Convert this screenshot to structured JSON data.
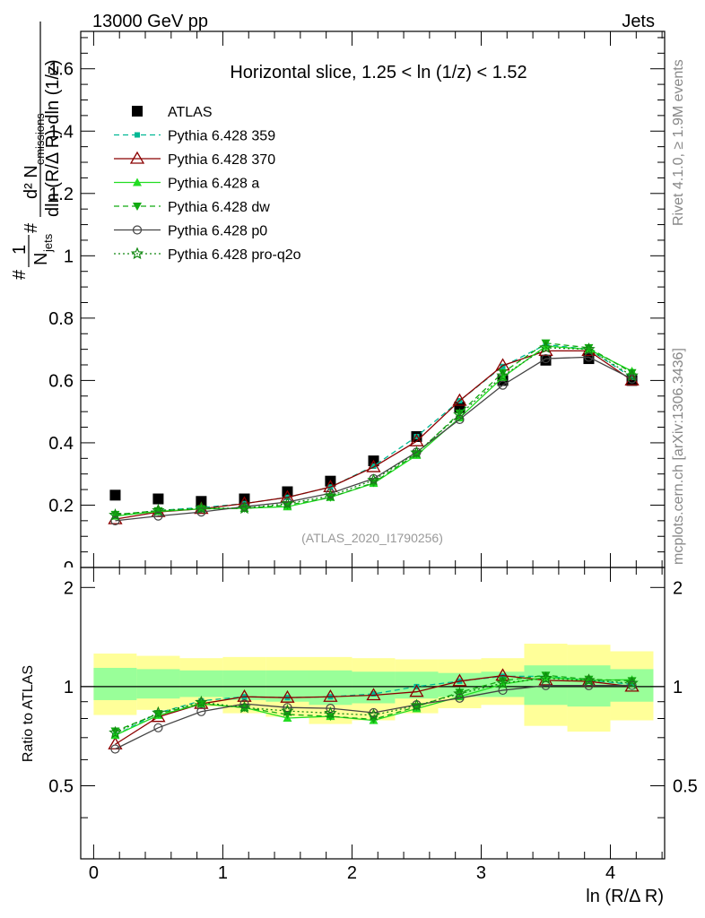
{
  "header": {
    "left": "13000 GeV pp",
    "right": "Jets"
  },
  "side_texts": {
    "rivet": "Rivet 4.1.0, ≥ 1.9M events",
    "mcplots": "mcplots.cern.ch [arXiv:1306.3436]"
  },
  "colors": {
    "atlas": "#000000",
    "p359": "#00b894",
    "p370": "#8b0000",
    "a": "#22dd22",
    "dw": "#11aa11",
    "p0": "#444444",
    "proq2o": "#118811",
    "band_yellow": "#ffff99",
    "band_green": "#99ff99"
  },
  "chart_data": {
    "type": "line",
    "title": "Horizontal slice, 1.25 < ln (1/z) < 1.52",
    "watermark": "(ATLAS_2020_I1790256)",
    "xlabel": "ln (R/Δ R)",
    "ylabel_main": "1/N_jets d²N_emissions / dln(R/ΔR) dln(1/z)",
    "ylabel_main_parts": {
      "hash": "#",
      "one": "1",
      "njets": "N",
      "jets_sub": "jets",
      "d2": "d² N",
      "emissions_sub": "emissions",
      "denominator": "dln (R/Δ R) dln (1/z)"
    },
    "ylabel_ratio": "Ratio to ATLAS",
    "xlim": [
      -0.1,
      4.42
    ],
    "ylim_main": [
      0,
      1.72
    ],
    "ylim_ratio": [
      0.3,
      2.3
    ],
    "x_ticks": [
      "0",
      "1",
      "2",
      "3",
      "4"
    ],
    "y_ticks_main": [
      "0.2",
      "0.4",
      "0.6",
      "0.8",
      "1",
      "1.2",
      "1.4",
      "1.6"
    ],
    "y_ticks_ratio": [
      "0.5",
      "1",
      "2"
    ],
    "x": [
      0.167,
      0.5,
      0.833,
      1.167,
      1.5,
      1.833,
      2.167,
      2.5,
      2.833,
      3.167,
      3.5,
      3.833,
      4.167
    ],
    "band_edges": [
      0.0,
      0.333,
      0.667,
      1.0,
      1.333,
      1.667,
      2.0,
      2.333,
      2.667,
      3.0,
      3.333,
      3.667,
      4.0,
      4.333
    ],
    "band_yellow": [
      [
        0.82,
        1.26
      ],
      [
        0.85,
        1.24
      ],
      [
        0.87,
        1.22
      ],
      [
        0.83,
        1.23
      ],
      [
        0.81,
        1.23
      ],
      [
        0.77,
        1.23
      ],
      [
        0.79,
        1.22
      ],
      [
        0.83,
        1.21
      ],
      [
        0.86,
        1.21
      ],
      [
        0.88,
        1.22
      ],
      [
        0.76,
        1.35
      ],
      [
        0.73,
        1.34
      ],
      [
        0.79,
        1.28
      ]
    ],
    "band_green": [
      [
        0.91,
        1.14
      ],
      [
        0.92,
        1.13
      ],
      [
        0.93,
        1.12
      ],
      [
        0.91,
        1.12
      ],
      [
        0.9,
        1.12
      ],
      [
        0.88,
        1.12
      ],
      [
        0.89,
        1.11
      ],
      [
        0.92,
        1.11
      ],
      [
        0.93,
        1.1
      ],
      [
        0.93,
        1.11
      ],
      [
        0.88,
        1.16
      ],
      [
        0.87,
        1.16
      ],
      [
        0.9,
        1.13
      ]
    ],
    "series": [
      {
        "key": "atlas",
        "name": "ATLAS",
        "marker": "square",
        "dash": "none",
        "values": [
          0.232,
          0.22,
          0.212,
          0.22,
          0.243,
          0.277,
          0.342,
          0.42,
          0.515,
          0.6,
          0.665,
          0.67,
          0.6
        ]
      },
      {
        "key": "p359",
        "name": "Pythia 6.428 359",
        "marker": "smallsquare",
        "dash": "6,4",
        "values": [
          0.165,
          0.183,
          0.192,
          0.205,
          0.225,
          0.258,
          0.325,
          0.42,
          0.535,
          0.645,
          0.715,
          0.7,
          0.61
        ]
      },
      {
        "key": "p370",
        "name": "Pythia 6.428 370",
        "marker": "triangle-open",
        "dash": "none",
        "values": [
          0.155,
          0.178,
          0.188,
          0.205,
          0.225,
          0.258,
          0.322,
          0.405,
          0.535,
          0.648,
          0.695,
          0.695,
          0.6
        ]
      },
      {
        "key": "a",
        "name": "Pythia 6.428 a",
        "marker": "triangle",
        "dash": "none",
        "values": [
          0.165,
          0.18,
          0.188,
          0.19,
          0.195,
          0.225,
          0.27,
          0.36,
          0.48,
          0.61,
          0.71,
          0.7,
          0.63
        ]
      },
      {
        "key": "dw",
        "name": "Pythia 6.428 dw",
        "marker": "triangle-down",
        "dash": "6,4",
        "values": [
          0.17,
          0.182,
          0.188,
          0.19,
          0.2,
          0.225,
          0.272,
          0.365,
          0.495,
          0.625,
          0.72,
          0.705,
          0.625
        ]
      },
      {
        "key": "p0",
        "name": "Pythia 6.428 p0",
        "marker": "circle-open",
        "dash": "none",
        "values": [
          0.15,
          0.165,
          0.178,
          0.195,
          0.21,
          0.238,
          0.285,
          0.37,
          0.475,
          0.585,
          0.67,
          0.675,
          0.605
        ]
      },
      {
        "key": "proq2o",
        "name": "Pythia 6.428 pro-q2o",
        "marker": "star",
        "dash": "2,3",
        "values": [
          0.168,
          0.183,
          0.19,
          0.19,
          0.205,
          0.23,
          0.28,
          0.368,
          0.49,
          0.615,
          0.705,
          0.7,
          0.615
        ]
      }
    ]
  }
}
